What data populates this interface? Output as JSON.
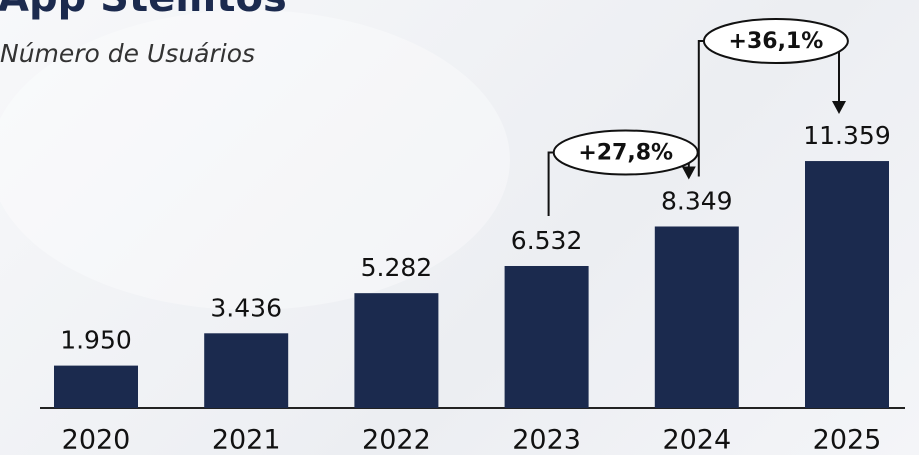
{
  "chart_data": {
    "type": "bar",
    "title": "App Stellitos",
    "subtitle": "Número de Usuários",
    "categories": [
      "2020",
      "2021",
      "2022",
      "2023",
      "2024",
      "2025"
    ],
    "values": [
      1950,
      3436,
      5282,
      6532,
      8349,
      11359
    ],
    "value_labels": [
      "1.950",
      "3.436",
      "5.282",
      "6.532",
      "8.349",
      "11.359"
    ],
    "color": "#1b2a4e",
    "annotations": [
      "+27,8%",
      "+36,1%"
    ]
  }
}
